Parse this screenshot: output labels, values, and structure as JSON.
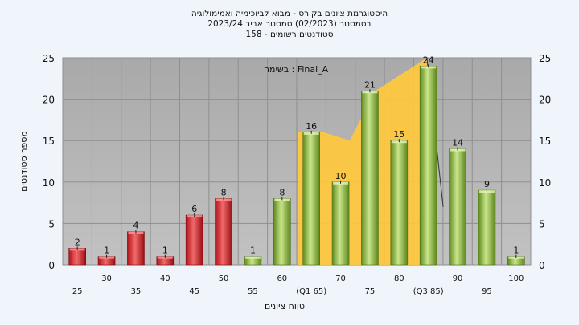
{
  "chart_data": {
    "type": "bar",
    "title_lines": [
      "היסטוגרמת ציונים בקורס - מבוא לביוכימיה ואמימולוגיה",
      "בסמסטר  (02/2023)  סמסטר אביב 2023/24",
      "סטודנטים רשומים - 158"
    ],
    "annotation": "בשימה : Final_A",
    "xlabel": "טווח ציונים",
    "ylabel": "מספר סטודנטים",
    "ylim": [
      0,
      25
    ],
    "yticks": [
      0,
      5,
      10,
      15,
      20,
      25
    ],
    "categories": [
      "25",
      "30",
      "35",
      "40",
      "45",
      "50",
      "55",
      "60",
      "65",
      "70",
      "75",
      "80",
      "85",
      "90",
      "95",
      "100"
    ],
    "x_tick_labels": [
      "25",
      "30",
      "35",
      "40",
      "45",
      "50",
      "55",
      "60",
      "(Q1 65)",
      "70",
      "75",
      "80",
      "(Q3 85)",
      "90",
      "95",
      "100"
    ],
    "values": [
      2,
      1,
      4,
      1,
      6,
      8,
      1,
      8,
      16,
      10,
      21,
      15,
      24,
      14,
      9,
      1
    ],
    "bar_colors": [
      "red",
      "red",
      "red",
      "red",
      "red",
      "red",
      "green",
      "green",
      "green",
      "green",
      "green",
      "green",
      "green",
      "green",
      "green",
      "green"
    ],
    "interquartile_band": {
      "from": "65",
      "to": "85",
      "values": [
        16,
        16,
        15,
        21,
        23,
        25
      ]
    },
    "grid": true,
    "colors": {
      "plot_background": "#b4b4b4",
      "page_background": "#f0f5fc",
      "fail_bar": "#d9262c",
      "pass_bar": "#8dba3c",
      "band": "#ffc83c"
    }
  }
}
